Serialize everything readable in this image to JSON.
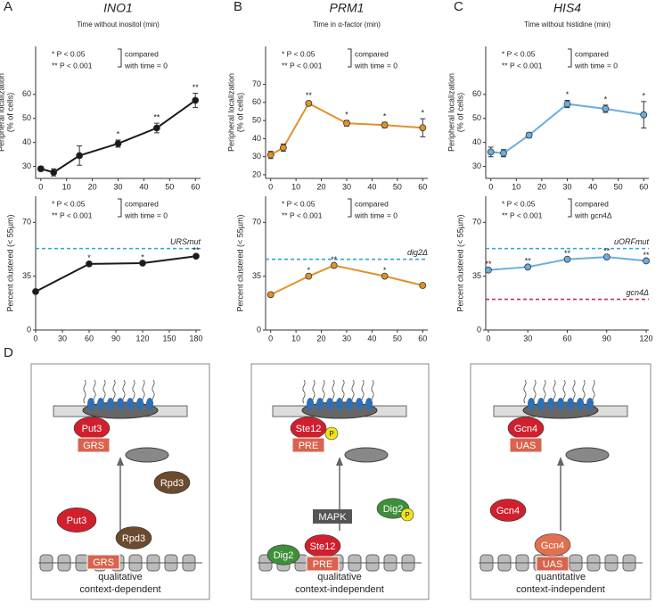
{
  "chart_data": [
    {
      "type": "line",
      "panel": "A",
      "title": "INO1",
      "xlabel": "Time without inositol (min)",
      "ylabel": [
        "Peripheral localization",
        "(% of cells)"
      ],
      "x": [
        0,
        5,
        15,
        30,
        45,
        60
      ],
      "xlim": [
        -2,
        62
      ],
      "xticks": [
        0,
        10,
        20,
        30,
        40,
        50,
        60
      ],
      "ylim": [
        25,
        80
      ],
      "yticks": [
        30,
        40,
        50,
        60
      ],
      "series": [
        {
          "color": "#1a1a1a",
          "values": [
            29,
            27.5,
            34.5,
            39.5,
            46,
            57.5
          ],
          "errors": [
            1,
            1.5,
            4,
            1.5,
            2,
            3
          ],
          "value_labels": [
            null,
            null,
            null,
            "*",
            "**",
            "**"
          ]
        }
      ],
      "significance_legend": [
        "*  P < 0.05",
        "**  P < 0.001"
      ],
      "comparison": [
        "compared",
        "with time = 0"
      ]
    },
    {
      "type": "line",
      "panel": "B",
      "title": "PRM1",
      "xlabel": "Time in α-factor (min)",
      "ylabel": [
        "Peripheral localization",
        "(% of cells)"
      ],
      "x": [
        0,
        5,
        15,
        30,
        45,
        60
      ],
      "xlim": [
        -2,
        62
      ],
      "xticks": [
        0,
        10,
        20,
        30,
        40,
        50,
        60
      ],
      "ylim": [
        18,
        91
      ],
      "yticks": [
        20,
        30,
        40,
        50,
        60,
        70
      ],
      "series": [
        {
          "color": "#e0922a",
          "values": [
            31,
            35,
            59.5,
            48.5,
            47.5,
            46
          ],
          "errors": [
            2,
            2,
            1,
            1.5,
            1.5,
            5
          ],
          "value_labels": [
            null,
            null,
            "**",
            "*",
            "*",
            "*"
          ]
        }
      ],
      "significance_legend": [
        "*  P < 0.05",
        "**  P < 0.001"
      ],
      "comparison": [
        "compared",
        "with time = 0"
      ]
    },
    {
      "type": "line",
      "panel": "C",
      "title": "HIS4",
      "xlabel": "Time without histidine (min)",
      "ylabel": [
        "Peripheral localization",
        "(% of cells)"
      ],
      "x": [
        0,
        5,
        15,
        30,
        45,
        60
      ],
      "xlim": [
        -2,
        62
      ],
      "xticks": [
        0,
        10,
        20,
        30,
        40,
        50,
        60
      ],
      "ylim": [
        25,
        80
      ],
      "yticks": [
        30,
        40,
        50,
        60
      ],
      "series": [
        {
          "color": "#6aaee0",
          "values": [
            36,
            35.5,
            43,
            56,
            54,
            51.5
          ],
          "errors": [
            2,
            1.5,
            1,
            1.5,
            1.5,
            5.5
          ],
          "value_labels": [
            null,
            null,
            null,
            "*",
            "*",
            "*"
          ]
        }
      ],
      "significance_legend": [
        "*  P < 0.05",
        "**  P < 0.001"
      ],
      "comparison": [
        "compared",
        "with time = 0"
      ]
    },
    {
      "type": "line",
      "ylabel": [
        "Percent clustered (< 55µm)"
      ],
      "x": [
        0,
        60,
        120,
        180
      ],
      "xlim": [
        0,
        185
      ],
      "xticks": [
        0,
        30,
        60,
        90,
        120,
        150,
        180
      ],
      "ylim": [
        0,
        87
      ],
      "yticks": [
        0,
        35,
        70
      ],
      "series": [
        {
          "color": "#1a1a1a",
          "values": [
            25,
            43,
            43.5,
            48
          ],
          "value_labels": [
            null,
            "*",
            "*",
            "**"
          ]
        }
      ],
      "reference_lines": [
        {
          "value": 53,
          "label": "URSmut",
          "color": "#29a9d6"
        }
      ],
      "significance_legend": [
        "*  P < 0.05",
        "**  P < 0.001"
      ],
      "comparison": [
        "compared",
        "with time = 0"
      ]
    },
    {
      "type": "line",
      "ylabel": [
        "Percent clustered (< 55µm)"
      ],
      "x": [
        0,
        15,
        25,
        45,
        60
      ],
      "xlim": [
        -2,
        62
      ],
      "xticks": [
        0,
        10,
        20,
        30,
        40,
        50,
        60
      ],
      "ylim": [
        0,
        87
      ],
      "yticks": [
        0,
        35,
        70
      ],
      "series": [
        {
          "color": "#e0922a",
          "values": [
            23,
            35,
            42,
            35,
            29
          ],
          "value_labels": [
            null,
            "*",
            "**",
            "*",
            null
          ]
        }
      ],
      "reference_lines": [
        {
          "value": 46,
          "label": "dig2Δ",
          "color": "#29a9d6"
        }
      ],
      "significance_legend": [
        "*  P < 0.05",
        "**  P < 0.001"
      ],
      "comparison": [
        "compared",
        "with time = 0"
      ]
    },
    {
      "type": "line",
      "ylabel": [
        "Percent clustered (< 55µm)"
      ],
      "x": [
        0,
        30,
        60,
        90,
        120
      ],
      "xlim": [
        -2,
        122
      ],
      "xticks": [
        0,
        30,
        60,
        90,
        120
      ],
      "ylim": [
        0,
        87
      ],
      "yticks": [
        0,
        35,
        70
      ],
      "series": [
        {
          "color": "#6aaee0",
          "values": [
            39,
            41,
            46,
            47.5,
            45
          ],
          "value_labels": [
            "**",
            "**",
            "**",
            "**",
            "**"
          ]
        }
      ],
      "reference_lines": [
        {
          "value": 53,
          "label": "uORFmut",
          "color": "#29a9d6"
        },
        {
          "value": 20,
          "label": "gcn4Δ",
          "color": "#c0306a"
        }
      ],
      "significance_legend": [
        "*  P < 0.05",
        "**  P < 0.001"
      ],
      "comparison": [
        "compared",
        "with gcn4Δ"
      ]
    }
  ],
  "diagram": {
    "panel": "D",
    "panels": [
      {
        "labels": [
          "Put3",
          "GRS",
          "Put3",
          "Rpd3",
          "Rpd3",
          "GRS"
        ],
        "caption": [
          "qualitative",
          "context-dependent"
        ]
      },
      {
        "labels": [
          "Ste12",
          "P",
          "PRE",
          "Dig2",
          "P",
          "MAPK",
          "Dig2",
          "Ste12",
          "PRE"
        ],
        "caption": [
          "qualitative",
          "context-independent"
        ]
      },
      {
        "labels": [
          "Gcn4",
          "UAS",
          "Gcn4",
          "Gcn4",
          "UAS"
        ],
        "caption": [
          "quantitative",
          "context-independent"
        ]
      }
    ]
  }
}
